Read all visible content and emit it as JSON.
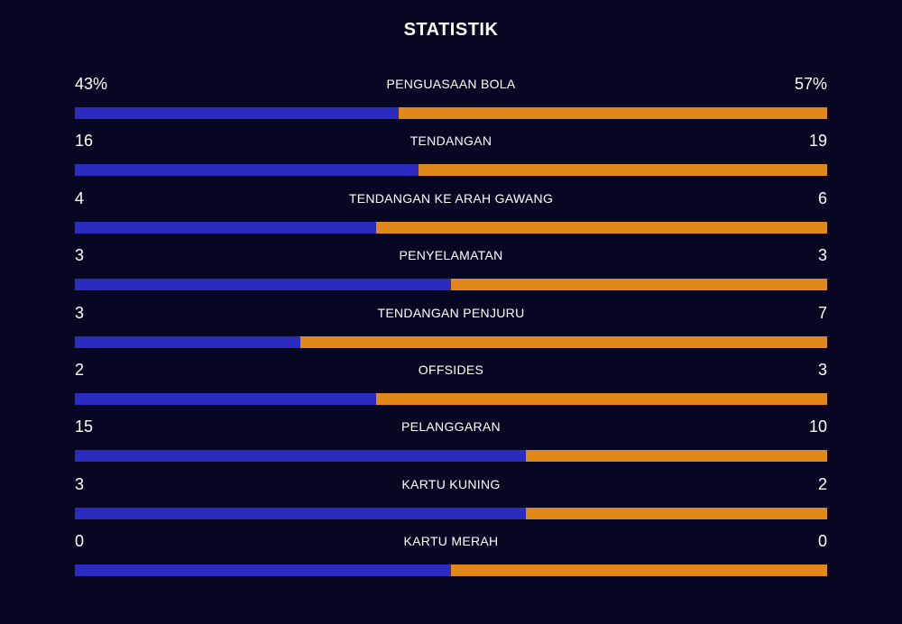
{
  "title": "STATISTIK",
  "colors": {
    "background": "#070723",
    "home": "#2b2bc0",
    "away": "#e0891a"
  },
  "stats": [
    {
      "label": "PENGUASAAN BOLA",
      "left": "43%",
      "right": "57%",
      "home_share": 0.43
    },
    {
      "label": "TENDANGAN",
      "left": "16",
      "right": "19",
      "home_share": 0.457
    },
    {
      "label": "TENDANGAN KE ARAH GAWANG",
      "left": "4",
      "right": "6",
      "home_share": 0.4
    },
    {
      "label": "PENYELAMATAN",
      "left": "3",
      "right": "3",
      "home_share": 0.5
    },
    {
      "label": "TENDANGAN PENJURU",
      "left": "3",
      "right": "7",
      "home_share": 0.3
    },
    {
      "label": "OFFSIDES",
      "left": "2",
      "right": "3",
      "home_share": 0.4
    },
    {
      "label": "PELANGGARAN",
      "left": "15",
      "right": "10",
      "home_share": 0.6
    },
    {
      "label": "KARTU KUNING",
      "left": "3",
      "right": "2",
      "home_share": 0.6
    },
    {
      "label": "KARTU MERAH",
      "left": "0",
      "right": "0",
      "home_share": 0.5
    }
  ]
}
